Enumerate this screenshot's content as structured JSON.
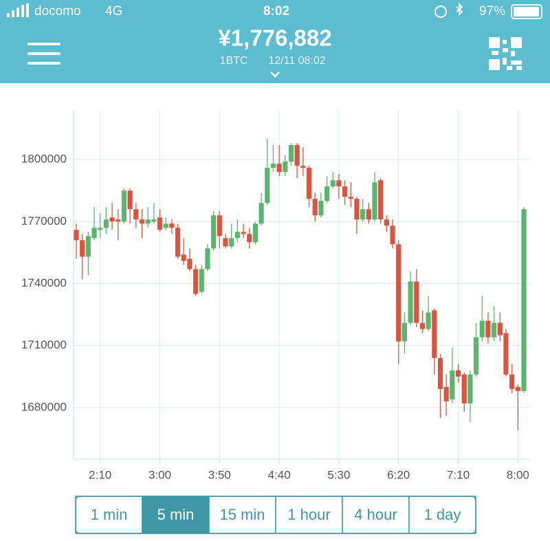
{
  "status_bar": {
    "carrier": "docomo",
    "network": "4G",
    "time": "8:02",
    "battery": "97%"
  },
  "header": {
    "price": "¥1,776,882",
    "unit": "1BTC",
    "timestamp": "12/11 08:02"
  },
  "chart_data": {
    "type": "candlestick",
    "categories": [
      null,
      null,
      null,
      null,
      "2:10",
      null,
      null,
      null,
      null,
      null,
      null,
      null,
      null,
      null,
      "3:00",
      null,
      null,
      null,
      null,
      null,
      null,
      null,
      null,
      null,
      "3:50",
      null,
      null,
      null,
      null,
      null,
      null,
      null,
      null,
      null,
      "4:40",
      null,
      null,
      null,
      null,
      null,
      null,
      null,
      null,
      null,
      "5:30",
      null,
      null,
      null,
      null,
      null,
      null,
      null,
      null,
      null,
      "6:20",
      null,
      null,
      null,
      null,
      null,
      null,
      null,
      null,
      null,
      "7:10",
      null,
      null,
      null,
      null,
      null,
      null,
      null,
      null,
      null,
      "8:00",
      null
    ],
    "open": [
      1766000,
      1761000,
      1753000,
      1762000,
      1766000,
      1767000,
      1772000,
      1771000,
      1770000,
      1785000,
      1776000,
      1771000,
      1769000,
      1770000,
      1772000,
      1767000,
      1769000,
      1767000,
      1754000,
      1752000,
      1747000,
      1736000,
      1747000,
      1757000,
      1773000,
      1762000,
      1758000,
      1762000,
      1765000,
      1764000,
      1760000,
      1769000,
      1779000,
      1796000,
      1798000,
      1794000,
      1799000,
      1807000,
      1797000,
      1796000,
      1781000,
      1773000,
      1780000,
      1787000,
      1790000,
      1787000,
      1782000,
      1781000,
      1771000,
      1776000,
      1771000,
      1790000,
      1771000,
      1768000,
      1759000,
      1712000,
      1721000,
      1741000,
      1721000,
      1718000,
      1727000,
      1704000,
      1690000,
      1684000,
      1698000,
      1696000,
      1682000,
      1696000,
      1714000,
      1722000,
      1714000,
      1721000,
      1716000,
      1696000,
      1690000,
      1688000
    ],
    "high": [
      1769000,
      1764000,
      1765000,
      1777000,
      1774000,
      1777000,
      1779000,
      1776000,
      1786000,
      1786000,
      1779000,
      1776000,
      1777000,
      1779000,
      1776000,
      1772000,
      1771000,
      1769000,
      1762000,
      1757000,
      1749000,
      1749000,
      1759000,
      1775000,
      1775000,
      1764000,
      1769000,
      1771000,
      1769000,
      1767000,
      1770000,
      1784000,
      1810000,
      1807000,
      1807000,
      1802000,
      1808000,
      1808000,
      1806000,
      1797000,
      1784000,
      1784000,
      1792000,
      1794000,
      1793000,
      1790000,
      1789000,
      1782000,
      1781000,
      1779000,
      1794000,
      1791000,
      1773000,
      1771000,
      1761000,
      1726000,
      1746000,
      1747000,
      1727000,
      1734000,
      1728000,
      1706000,
      1696000,
      1709000,
      1701000,
      1697000,
      1698000,
      1721000,
      1734000,
      1726000,
      1729000,
      1726000,
      1718000,
      1701000,
      1691000,
      1777000
    ],
    "low": [
      1752000,
      1742000,
      1744000,
      1761000,
      1762000,
      1764000,
      1766000,
      1761000,
      1769000,
      1769000,
      1767000,
      1762000,
      1767000,
      1769000,
      1765000,
      1766000,
      1764000,
      1752000,
      1749000,
      1746000,
      1734000,
      1735000,
      1746000,
      1756000,
      1757000,
      1757000,
      1757000,
      1760000,
      1762000,
      1757000,
      1759000,
      1768000,
      1778000,
      1794000,
      1792000,
      1792000,
      1797000,
      1791000,
      1792000,
      1777000,
      1770000,
      1772000,
      1779000,
      1786000,
      1781000,
      1778000,
      1777000,
      1764000,
      1770000,
      1769000,
      1770000,
      1769000,
      1765000,
      1757000,
      1701000,
      1706000,
      1720000,
      1719000,
      1716000,
      1717000,
      1696000,
      1675000,
      1676000,
      1682000,
      1692000,
      1678000,
      1673000,
      1695000,
      1712000,
      1711000,
      1712000,
      1712000,
      1695000,
      1687000,
      1669000,
      1687000
    ],
    "close": [
      1761000,
      1753000,
      1763000,
      1767000,
      1767000,
      1771000,
      1770000,
      1770000,
      1785000,
      1776000,
      1771000,
      1769000,
      1771000,
      1771000,
      1766000,
      1769000,
      1767000,
      1753000,
      1751000,
      1747000,
      1735000,
      1747000,
      1757000,
      1773000,
      1763000,
      1758000,
      1762000,
      1765000,
      1764000,
      1760000,
      1769000,
      1779000,
      1796000,
      1798000,
      1794000,
      1799000,
      1807000,
      1797000,
      1796000,
      1781000,
      1773000,
      1780000,
      1787000,
      1790000,
      1787000,
      1782000,
      1781000,
      1771000,
      1776000,
      1771000,
      1789000,
      1771000,
      1768000,
      1759000,
      1712000,
      1721000,
      1741000,
      1721000,
      1718000,
      1726000,
      1704000,
      1689000,
      1683000,
      1698000,
      1695000,
      1682000,
      1696000,
      1714000,
      1722000,
      1714000,
      1721000,
      1715000,
      1696000,
      1689000,
      1688000,
      1776000
    ],
    "ylim": [
      1655000,
      1824000
    ],
    "yticks": [
      1680000,
      1710000,
      1740000,
      1770000,
      1800000
    ],
    "grid": true,
    "up_color": "#5cb56f",
    "down_color": "#d9553f"
  },
  "intervals": {
    "options": [
      "1 min",
      "5 min",
      "15 min",
      "1 hour",
      "4 hour",
      "1 day"
    ],
    "selected": 1
  }
}
